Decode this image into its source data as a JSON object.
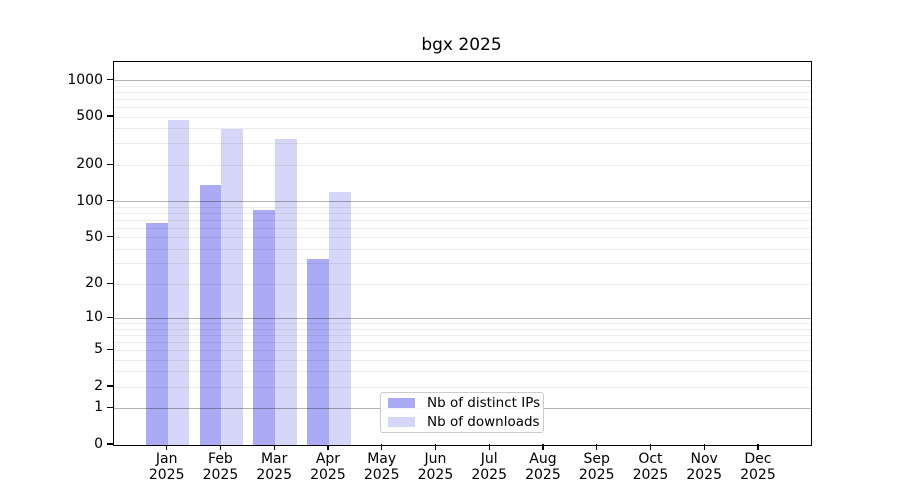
{
  "title": "bgx 2025",
  "chart_data": {
    "type": "bar",
    "title": "bgx 2025",
    "x_year": "2025",
    "categories": [
      "Jan",
      "Feb",
      "Mar",
      "Apr",
      "May",
      "Jun",
      "Jul",
      "Aug",
      "Sep",
      "Oct",
      "Nov",
      "Dec"
    ],
    "series": [
      {
        "name": "Nb of distinct IPs",
        "color": "#aaaaf5",
        "values": [
          66,
          137,
          85,
          33,
          0,
          0,
          0,
          0,
          0,
          0,
          0,
          0
        ]
      },
      {
        "name": "Nb of downloads",
        "color": "#d6d6f8",
        "values": [
          475,
          400,
          330,
          120,
          0,
          0,
          0,
          0,
          0,
          0,
          0,
          0
        ]
      }
    ],
    "yticks": [
      0,
      1,
      2,
      5,
      10,
      20,
      50,
      100,
      200,
      500,
      1000
    ],
    "y_scale": "log(1+x)",
    "ylim": [
      0,
      1300
    ],
    "grid": "horizontal major+minor",
    "legend_position": "lower center",
    "axis_color": "#000000",
    "major_grid_color": "#b3b3b3",
    "minor_grid_color": "#ececec"
  }
}
